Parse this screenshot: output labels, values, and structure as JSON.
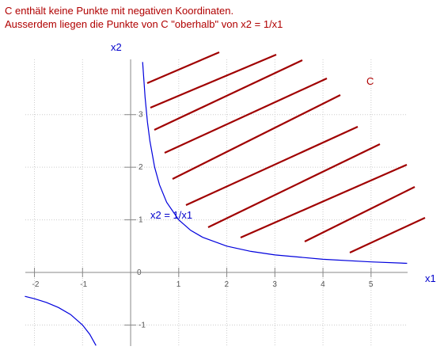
{
  "chart_data": {
    "type": "line",
    "title": "C enthält keine Punkte mit negativen Koordinaten.",
    "subtitle": "Ausserdem liegen die Punkte von C \"oberhalb\" von x2 = 1/x1",
    "x_label": "x1",
    "y_label": "x2",
    "annotations": [
      "C",
      "x2 = 1/x1"
    ],
    "x": [
      -2.2,
      -2,
      -1.75,
      -1.5,
      -1.25,
      -1,
      -0.85,
      -0.72,
      0,
      0.25,
      0.3,
      0.35,
      0.4,
      0.5,
      0.6,
      0.75,
      1,
      1.25,
      1.5,
      2,
      2.5,
      3,
      4,
      5,
      5.75
    ],
    "series": [
      {
        "name": "x2 = 1/x1",
        "color": "#0000dd",
        "values": [
          -0.455,
          -0.5,
          -0.571,
          -0.667,
          -0.8,
          -1,
          -1.176,
          -1.389,
          null,
          4,
          3.333,
          2.857,
          2.5,
          2,
          1.667,
          1.333,
          1,
          0.8,
          0.667,
          0.5,
          0.4,
          0.333,
          0.25,
          0.2,
          0.174
        ]
      }
    ],
    "xlim": [
      -2.19,
      5.76
    ],
    "ylim": [
      -1.4,
      4.05
    ],
    "xticks": [
      -2,
      -1,
      0,
      1,
      2,
      3,
      4,
      5
    ],
    "yticks": [
      -1,
      1,
      2,
      3
    ],
    "grid": true
  }
}
